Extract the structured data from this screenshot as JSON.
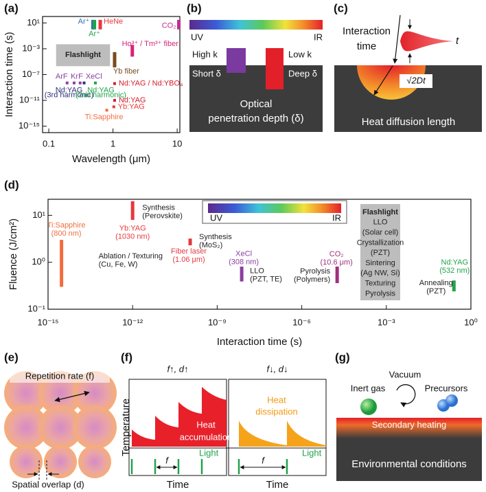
{
  "chart_data": [
    {
      "type": "range",
      "panel": "(a)",
      "xlabel": "Wavelength (μm)",
      "ylabel": "Interaction time (s)",
      "xlog": true,
      "ylog": true,
      "xlim": [
        0.08,
        11
      ],
      "ylim": [
        1e-16,
        100
      ],
      "xticks": [
        0.1,
        1,
        10
      ],
      "yticks": [
        {
          "value": 10,
          "label": "10¹"
        },
        {
          "value": 0.001,
          "label": "10⁻³"
        },
        {
          "value": 1e-07,
          "label": "10⁻⁷"
        },
        {
          "value": 1e-11,
          "label": "10⁻¹¹"
        },
        {
          "value": 1e-15,
          "label": "10⁻¹⁵"
        }
      ],
      "items": [
        {
          "label": [
            "Ar⁺"
          ],
          "x": 0.488,
          "y": [
            1,
            30
          ],
          "color": "#2f6db5"
        },
        {
          "label": [
            "Ar⁺"
          ],
          "x": 0.514,
          "y": [
            1,
            30
          ],
          "color": "#1fa34a"
        },
        {
          "label": [
            "HeNe"
          ],
          "x": 0.633,
          "y": [
            1,
            30
          ],
          "color": "#e8383d"
        },
        {
          "label": [
            "CO₂"
          ],
          "x": 10.6,
          "y": [
            1,
            30
          ],
          "color": "#c0308f"
        },
        {
          "label": [
            "Ho³⁺ / Tm³⁺ fiber"
          ],
          "x": 2,
          "y": [
            6e-05,
            0.004
          ],
          "color": "#d6247a"
        },
        {
          "label": [
            "Flashlight"
          ],
          "x": [
            0.13,
            0.9
          ],
          "y": [
            2e-06,
            0.005
          ],
          "color": "#bdbdbd"
        },
        {
          "label": [
            "Yb fiber"
          ],
          "x": 1.06,
          "y": [
            1.3e-06,
            0.0003
          ],
          "color": "#7a4a1e"
        },
        {
          "label": [
            "ArF"
          ],
          "x": 0.193,
          "y": 5e-09,
          "color": "#8a3fa0"
        },
        {
          "label": [
            "KrF"
          ],
          "x": 0.248,
          "y": 5e-09,
          "color": "#8a3fa0"
        },
        {
          "label": [
            "XeCl"
          ],
          "x": 0.308,
          "y": 5e-09,
          "color": "#8a3fa0"
        },
        {
          "label": [
            "Nd:YAG",
            "(3rd harmonic)"
          ],
          "x": 0.355,
          "y": 5e-09,
          "color": "#2b2f7a"
        },
        {
          "label": [
            "Nd:YAG",
            "(2nd harmonic)"
          ],
          "x": 0.532,
          "y": 5e-09,
          "color": "#1fa34a"
        },
        {
          "label": [
            "Nd:YAG / Nd:YBO₄"
          ],
          "x": 1.06,
          "y": 4e-09,
          "color": "#d4202a"
        },
        {
          "label": [
            "Nd:YAG"
          ],
          "x": 1.06,
          "y": 1e-11,
          "color": "#d4202a"
        },
        {
          "label": [
            "Yb:YAG"
          ],
          "x": 1.03,
          "y": 1e-12,
          "color": "#e8383d"
        },
        {
          "label": [
            "Ti:Sapphire"
          ],
          "x": 0.8,
          "y": 3e-13,
          "color": "#f26d3d"
        }
      ]
    },
    {
      "type": "range",
      "panel": "(d)",
      "xlabel": "Interaction time (s)",
      "ylabel": "Fluence (J/cm²)",
      "xlog": true,
      "ylog": true,
      "xlim": [
        1e-15,
        1
      ],
      "ylim": [
        0.1,
        22
      ],
      "xticks": [
        {
          "value": 1e-15,
          "label": "10⁻¹⁵"
        },
        {
          "value": 1e-12,
          "label": "10⁻¹²"
        },
        {
          "value": 1e-09,
          "label": "10⁻⁹"
        },
        {
          "value": 1e-06,
          "label": "10⁻⁶"
        },
        {
          "value": 0.001,
          "label": "10⁻³"
        },
        {
          "value": 1,
          "label": "10⁰"
        }
      ],
      "yticks": [
        {
          "value": 0.1,
          "label": "10⁻¹"
        },
        {
          "value": 1,
          "label": "10⁰"
        },
        {
          "value": 10,
          "label": "10¹"
        }
      ],
      "colorbar": [
        "UV",
        "IR"
      ],
      "items": [
        {
          "label": [
            "Ti:Sapphire",
            "(800 nm)"
          ],
          "note": [
            "Ablation / Texturing",
            "(Cu, Fe, W)"
          ],
          "x": 3e-15,
          "y": [
            0.3,
            3
          ],
          "color": "#f26d3d"
        },
        {
          "label": [
            "Yb:YAG",
            "(1030 nm)"
          ],
          "note": [
            "Synthesis",
            "(Perovskite)"
          ],
          "x": 1e-12,
          "y": [
            8,
            20
          ],
          "color": "#e8383d"
        },
        {
          "label": [
            "Fiber laser",
            "(1.06 μm)"
          ],
          "note": [
            "Synthesis",
            "(MoS₂)"
          ],
          "x": 1.1e-10,
          "y": [
            2.3,
            3.2
          ],
          "color": "#e8383d"
        },
        {
          "label": [
            "XeCl",
            "(308 nm)"
          ],
          "note": [
            "LLO",
            "(PZT, TE)"
          ],
          "x": 7.4e-09,
          "y": [
            0.39,
            0.81
          ],
          "color": "#8a3fa0"
        },
        {
          "label": [
            "CO₂",
            "(10.6 μm)"
          ],
          "note": [
            "Pyrolysis",
            "(Polymers)"
          ],
          "x": 1.8e-05,
          "y": [
            0.36,
            0.81
          ],
          "color": "#a0307f"
        },
        {
          "label": [
            "Nd:YAG",
            "(532 nm)"
          ],
          "note": [
            "Annealing",
            "(PZT)"
          ],
          "x": 0.25,
          "y": [
            0.24,
            0.41
          ],
          "color": "#1fa34a"
        },
        {
          "label": [
            "Flashlight",
            "LLO",
            "(Solar cell)",
            "Crystallization",
            "(PZT)",
            "Sintering",
            "(Ag NW, Si)",
            "Texturing",
            "Pyrolysis"
          ],
          "x": [
            0.00012,
            0.0031
          ],
          "y": [
            0.155,
            17.4
          ],
          "color": "#bdbdbd"
        }
      ]
    }
  ],
  "panels": {
    "b": {
      "label": "(b)",
      "colorbar": [
        "UV",
        "IR"
      ],
      "high_k": "High k",
      "low_k": "Low k",
      "short": "Short δ",
      "deep": "Deep δ",
      "caption": [
        "Optical",
        "penetration depth (δ)"
      ]
    },
    "c": {
      "label": "(c)",
      "interaction": [
        "Interaction",
        "time"
      ],
      "t": "t",
      "formula": "√2Dt",
      "caption": "Heat diffusion length"
    },
    "e": {
      "label": "(e)",
      "top": "Repetition rate (f)",
      "bottom": "Spatial overlap (d)"
    },
    "f": {
      "label": "(f)",
      "ylabel": "Temperature",
      "left": {
        "title": "f↑, d↑",
        "heat": [
          "Heat",
          "accumulation"
        ],
        "light": "Light",
        "f": "f",
        "xlabel": "Time"
      },
      "right": {
        "title": "f↓, d↓",
        "heat": [
          "Heat",
          "dissipation"
        ],
        "light": "Light",
        "f": "f",
        "xlabel": "Time"
      }
    },
    "g": {
      "label": "(g)",
      "vacuum": "Vacuum",
      "inert": "Inert gas",
      "precursors": "Precursors",
      "heating": "Secondary heating",
      "caption": "Environmental conditions"
    }
  }
}
